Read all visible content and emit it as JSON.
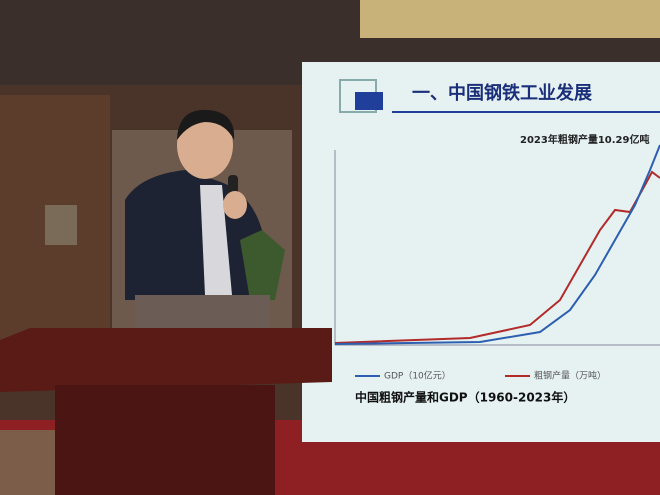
{
  "slide": {
    "title": "一、中国钢铁工业发展",
    "annotation": "2023年粗钢产量10.29亿吨",
    "legend": [
      "GDP（10亿元）",
      "粗钢产量（万吨）"
    ],
    "caption": "中国粗钢产量和GDP（1960-2023年）"
  }
}
